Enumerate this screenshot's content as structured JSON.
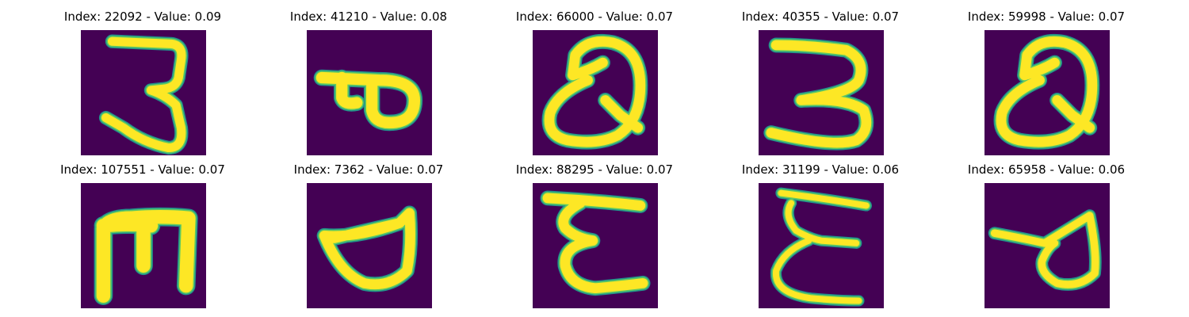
{
  "colors": {
    "background": "#440154",
    "stroke_outer": "#21918c",
    "stroke_mid": "#5ec962",
    "stroke_core": "#fde725"
  },
  "images": [
    {
      "title": "Index: 22092 - Value: 0.09",
      "glyph": "3-hooked"
    },
    {
      "title": "Index: 41210 - Value: 0.08",
      "glyph": "rotated-P"
    },
    {
      "title": "Index: 66000 - Value: 0.07",
      "glyph": "Q-loop"
    },
    {
      "title": "Index: 40355 - Value: 0.07",
      "glyph": "3"
    },
    {
      "title": "Index: 59998 - Value: 0.07",
      "glyph": "Q-loop"
    },
    {
      "title": "Index: 107551 - Value: 0.07",
      "glyph": "E-rotated"
    },
    {
      "title": "Index: 7362 - Value: 0.07",
      "glyph": "rotated-d"
    },
    {
      "title": "Index: 88295 - Value: 0.07",
      "glyph": "epsilon"
    },
    {
      "title": "Index: 31199 - Value: 0.06",
      "glyph": "epsilon-thin"
    },
    {
      "title": "Index: 65958 - Value: 0.06",
      "glyph": "rotated-d-thin"
    }
  ]
}
